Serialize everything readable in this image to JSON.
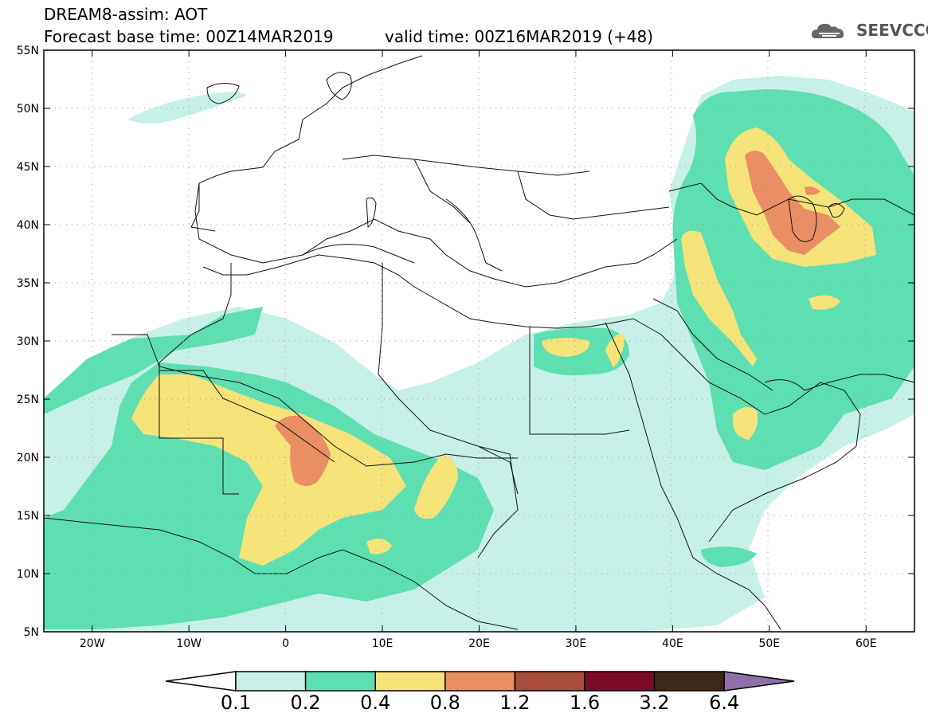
{
  "header": {
    "model_title": "DREAM8-assim: AOT",
    "base_time": "Forecast base time: 00Z14MAR2019",
    "valid_time": "valid time: 00Z16MAR2019 (+48)"
  },
  "logo": {
    "text": "SEEVCCC",
    "icon": "cloud-icon"
  },
  "map": {
    "lon_range": [
      -25,
      65
    ],
    "lat_range": [
      5,
      55
    ],
    "lat_labels": [
      "5N",
      "10N",
      "15N",
      "20N",
      "25N",
      "30N",
      "35N",
      "40N",
      "45N",
      "50N",
      "55N"
    ],
    "lon_labels": [
      "20W",
      "10W",
      "0",
      "10E",
      "20E",
      "30E",
      "40E",
      "50E",
      "60E"
    ]
  },
  "colorbar": {
    "thresholds": [
      "0.1",
      "0.2",
      "0.4",
      "0.8",
      "1.2",
      "1.6",
      "3.2",
      "6.4"
    ],
    "colors": [
      "#ffffff",
      "#c7f1e8",
      "#5ddfb1",
      "#f6e37a",
      "#ea8e63",
      "#a84c3e",
      "#7b0c27",
      "#3c281a",
      "#8f70a7"
    ]
  }
}
